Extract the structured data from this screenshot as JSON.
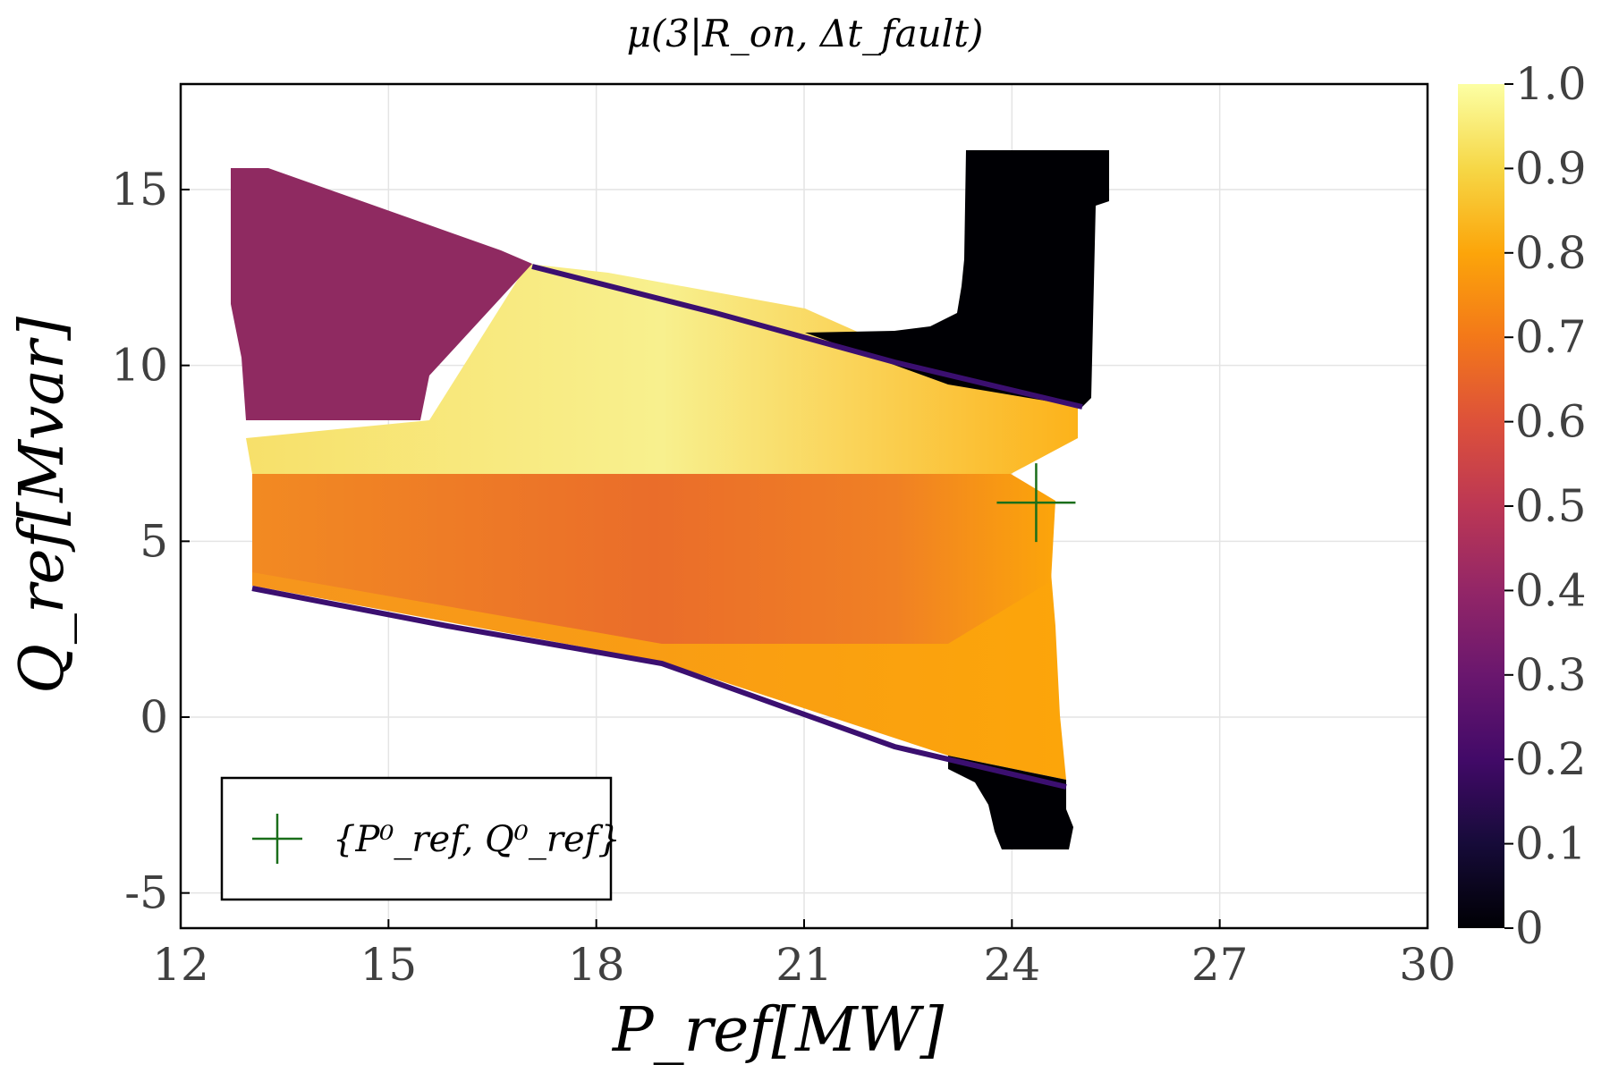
{
  "chart_data": {
    "type": "heatmap",
    "title": "μ(3|R_on, Δt_fault)",
    "xlabel": "P_ref[MW]",
    "ylabel": "Q_ref[Mvar]",
    "xlim": [
      12,
      30
    ],
    "ylim": [
      -6,
      18
    ],
    "x_ticks": [
      "12",
      "15",
      "18",
      "21",
      "24",
      "27",
      "30"
    ],
    "y_ticks": [
      "-5",
      "0",
      "5",
      "10",
      "15"
    ],
    "colorbar": {
      "colormap": "inferno",
      "range": [
        0,
        1
      ],
      "ticks": [
        "0",
        "0.1",
        "0.2",
        "0.3",
        "0.4",
        "0.5",
        "0.6",
        "0.7",
        "0.8",
        "0.9",
        "1.0"
      ]
    },
    "grid": true,
    "legend": {
      "position": "bottom-left",
      "entries": [
        {
          "label": "{P⁰_ref, Q⁰_ref}",
          "marker": "+",
          "color": "#1a6e1a"
        }
      ]
    },
    "marker_point": {
      "x": 24.35,
      "y": 6.1
    },
    "regions": [
      {
        "description_value": 0.35,
        "note": "upper-left purple wedge"
      },
      {
        "description_value": 0.95,
        "note": "upper yellow band"
      },
      {
        "description_value": 0.7,
        "note": "central orange band"
      },
      {
        "description_value": 0.8,
        "note": "lower orange band"
      },
      {
        "description_value": 0.0,
        "note": "black regions (top-right and bottom-right)"
      }
    ]
  }
}
